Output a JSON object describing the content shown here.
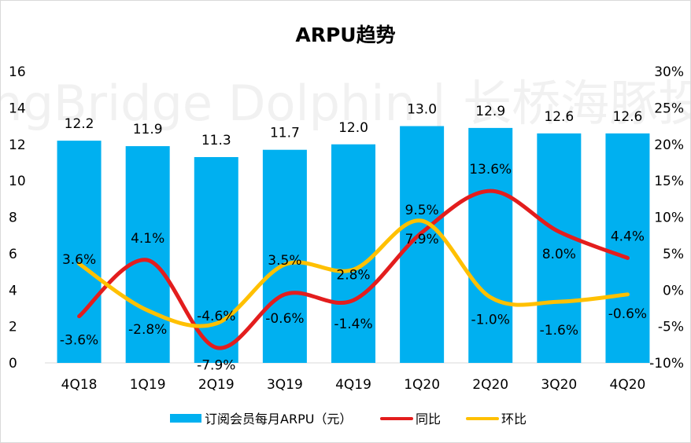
{
  "chart_data": {
    "type": "bar",
    "title": "ARPU趋势",
    "watermark": "LongBridge Dolphin | 长桥海豚投研",
    "categories": [
      "4Q18",
      "1Q19",
      "2Q19",
      "3Q19",
      "4Q19",
      "1Q20",
      "2Q20",
      "3Q20",
      "4Q20"
    ],
    "bar_series": {
      "name": "订阅会员每月ARPU（元）",
      "color": "#00B0F0",
      "values": [
        12.2,
        11.9,
        11.3,
        11.7,
        12.0,
        13.0,
        12.9,
        12.6,
        12.6
      ],
      "labels": [
        "12.2",
        "11.9",
        "11.3",
        "11.7",
        "12.0",
        "13.0",
        "12.9",
        "12.6",
        "12.6"
      ]
    },
    "line_series": [
      {
        "name": "同比",
        "color": "#E31D1D",
        "values": [
          -3.6,
          4.1,
          -7.9,
          -0.6,
          -1.4,
          7.9,
          13.6,
          8.0,
          4.4
        ],
        "labels": [
          "-3.6%",
          "4.1%",
          "-7.9%",
          "-0.6%",
          "-1.4%",
          "7.9%",
          "13.6%",
          "8.0%",
          "4.4%"
        ]
      },
      {
        "name": "环比",
        "color": "#FFC000",
        "values": [
          3.6,
          -2.8,
          -4.6,
          3.5,
          2.8,
          9.5,
          -1.0,
          -1.6,
          -0.6
        ],
        "labels": [
          "3.6%",
          "-2.8%",
          "-4.6%",
          "3.5%",
          "2.8%",
          "9.5%",
          "-1.0%",
          "-1.6%",
          "-0.6%"
        ]
      }
    ],
    "y_left": {
      "min": 0,
      "max": 16,
      "ticks": [
        "0",
        "2",
        "4",
        "6",
        "8",
        "10",
        "12",
        "14",
        "16"
      ]
    },
    "y_right": {
      "min": -10,
      "max": 30,
      "ticks": [
        "-10%",
        "-5%",
        "0%",
        "5%",
        "10%",
        "15%",
        "20%",
        "25%",
        "30%"
      ]
    },
    "grid": false,
    "legend_position": "bottom"
  }
}
